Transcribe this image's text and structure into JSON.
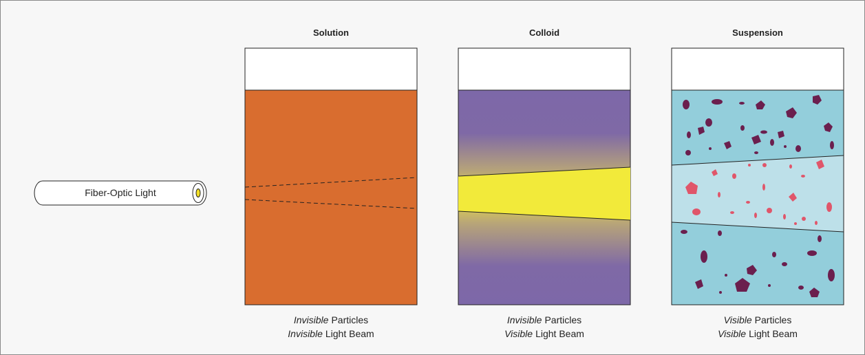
{
  "light": {
    "label": "Fiber-Optic Light"
  },
  "panels": [
    {
      "title": "Solution",
      "lines": [
        {
          "emphasis": "Invisible",
          "text": "Particles"
        },
        {
          "emphasis": "Invisible",
          "text": "Light Beam"
        }
      ]
    },
    {
      "title": "Colloid",
      "lines": [
        {
          "emphasis": "Invisible",
          "text": "Particles"
        },
        {
          "emphasis": "Visible",
          "text": "Light Beam"
        }
      ]
    },
    {
      "title": "Suspension",
      "lines": [
        {
          "emphasis": "Visible",
          "text": "Particles"
        },
        {
          "emphasis": "Visible",
          "text": "Light Beam"
        }
      ]
    }
  ]
}
